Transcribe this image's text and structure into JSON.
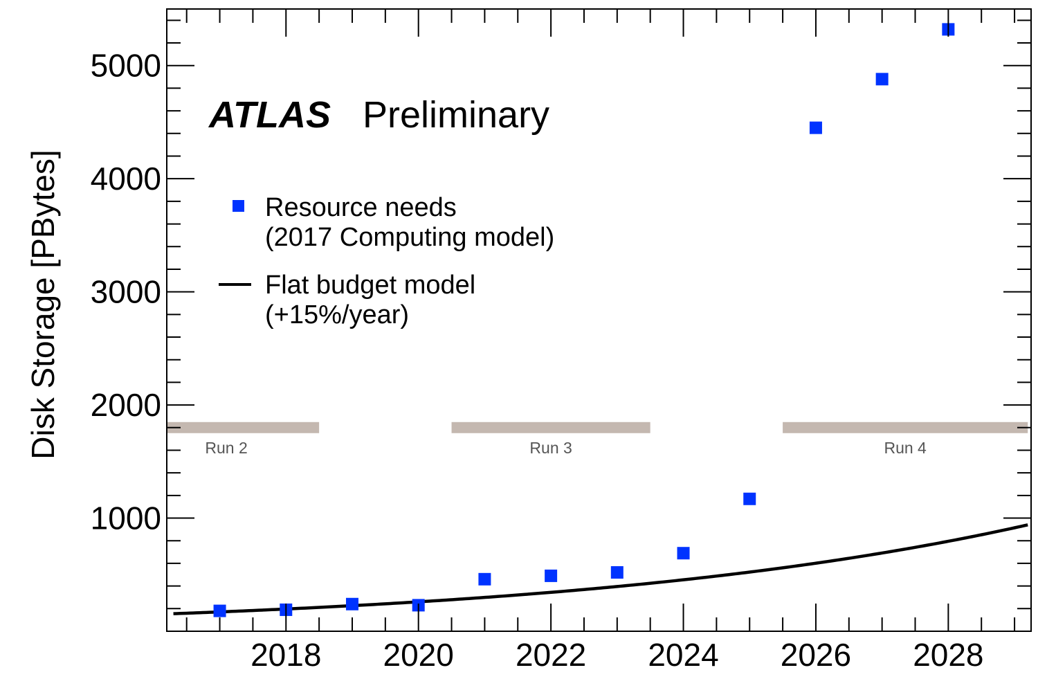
{
  "chart_data": {
    "type": "scatter",
    "ylabel": "Disk Storage [PBytes]",
    "xlabel": "",
    "xlim": [
      2016.2,
      2029.25
    ],
    "ylim": [
      0,
      5500
    ],
    "x_ticks": [
      2018,
      2020,
      2022,
      2024,
      2026,
      2028
    ],
    "y_ticks": [
      1000,
      2000,
      3000,
      4000,
      5000
    ],
    "grid": false,
    "legend_position": "upper-left",
    "annotation": {
      "experiment": "ATLAS",
      "status": "Preliminary"
    },
    "series": [
      {
        "name": "Resource needs (2017 Computing model)",
        "legend_lines": [
          "Resource needs",
          "(2017 Computing model)"
        ],
        "kind": "markers",
        "color": "#0033ff",
        "x": [
          2017,
          2018,
          2019,
          2020,
          2021,
          2022,
          2023,
          2024,
          2025,
          2026,
          2027,
          2028
        ],
        "y": [
          180,
          190,
          240,
          230,
          460,
          490,
          520,
          690,
          1170,
          4450,
          4880,
          5320
        ]
      },
      {
        "name": "Flat budget model (+15%/year)",
        "legend_lines": [
          "Flat budget model",
          "(+15%/year)"
        ],
        "kind": "line",
        "color": "#000000",
        "function": "exponential",
        "x_start": 2016.3,
        "y_start": 155,
        "growth_per_year": 0.15,
        "x_end": 2029.2
      }
    ],
    "runs": [
      {
        "label": "Run 2",
        "x_start": 2016.2,
        "x_end": 2018.5,
        "y": 1800,
        "color": "#c4b8b0"
      },
      {
        "label": "Run 3",
        "x_start": 2020.5,
        "x_end": 2023.5,
        "y": 1800,
        "color": "#c4b8b0"
      },
      {
        "label": "Run 4",
        "x_start": 2025.5,
        "x_end": 2029.2,
        "y": 1800,
        "color": "#c4b8b0"
      }
    ]
  }
}
